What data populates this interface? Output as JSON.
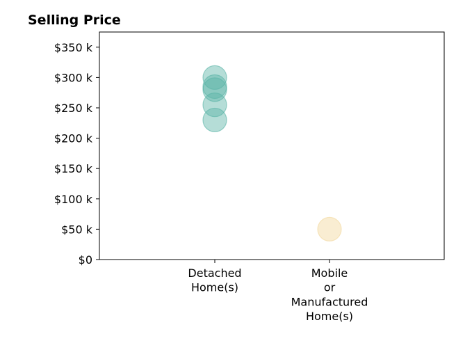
{
  "chart_data": {
    "type": "scatter",
    "title": "Selling Price",
    "xlabel": "",
    "ylabel": "",
    "categories": [
      [
        "Detached",
        "Home(s)"
      ],
      [
        "Mobile",
        "or",
        "Manufactured",
        "Home(s)"
      ]
    ],
    "y_ticks": [
      0,
      50000,
      100000,
      150000,
      200000,
      250000,
      300000,
      350000
    ],
    "y_tick_labels": [
      "$0",
      "$50 k",
      "$100 k",
      "$150 k",
      "$200 k",
      "$250 k",
      "$300 k",
      "$350 k"
    ],
    "ylim": [
      0,
      375000
    ],
    "grid": false,
    "series": [
      {
        "category": "Detached Home(s)",
        "color": "#5ab4a6",
        "values": [
          300000,
          285000,
          280000,
          255000,
          230000
        ]
      },
      {
        "category": "Mobile or Manufactured Home(s)",
        "color": "#f2d79b",
        "values": [
          50000
        ]
      }
    ]
  }
}
